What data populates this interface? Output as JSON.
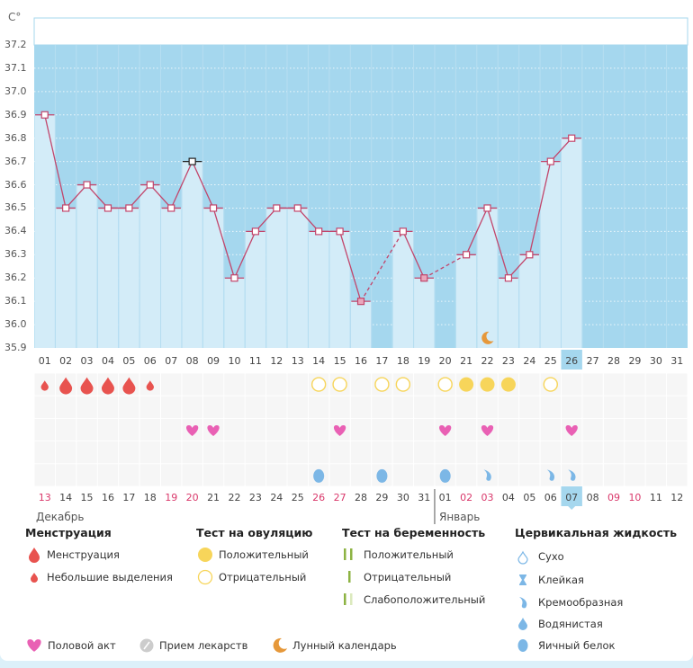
{
  "chart_data": {
    "type": "bar",
    "title": "",
    "ylabel": "C°",
    "ylim": [
      35.9,
      37.2
    ],
    "yticks": [
      "37.2",
      "37.1",
      "37.0",
      "36.9",
      "36.8",
      "36.7",
      "36.6",
      "36.5",
      "36.4",
      "36.3",
      "36.2",
      "36.1",
      "36.0",
      "35.9"
    ],
    "cycle_days": [
      "01",
      "02",
      "03",
      "04",
      "05",
      "06",
      "07",
      "08",
      "09",
      "10",
      "11",
      "12",
      "13",
      "14",
      "15",
      "16",
      "17",
      "18",
      "19",
      "20",
      "21",
      "22",
      "23",
      "24",
      "25",
      "26",
      "27",
      "28",
      "29",
      "30",
      "31"
    ],
    "temperatures": [
      36.9,
      36.5,
      36.6,
      36.5,
      36.5,
      36.6,
      36.5,
      36.7,
      36.5,
      36.2,
      36.4,
      36.5,
      36.5,
      36.4,
      36.4,
      36.1,
      null,
      36.4,
      36.2,
      null,
      36.3,
      36.5,
      36.2,
      36.3,
      36.7,
      36.8,
      null,
      null,
      null,
      null,
      null
    ],
    "highlighted_marker_day": "08",
    "solid_markers_days": [
      "16",
      "19"
    ],
    "current_day": "26",
    "calendar_dates": [
      "13",
      "14",
      "15",
      "16",
      "17",
      "18",
      "19",
      "20",
      "21",
      "22",
      "23",
      "24",
      "25",
      "26",
      "27",
      "28",
      "29",
      "30",
      "31",
      "01",
      "02",
      "03",
      "04",
      "05",
      "06",
      "07",
      "08",
      "09",
      "10",
      "11",
      "12"
    ],
    "weekend_dates_idx": [
      0,
      6,
      7,
      13,
      14,
      20,
      21,
      27,
      28
    ],
    "months": [
      "Декабрь",
      "Январь"
    ],
    "menstruation": [
      "small",
      "big",
      "big",
      "big",
      "big",
      "small",
      null,
      null,
      null,
      null,
      null,
      null,
      null,
      null,
      null,
      null,
      null,
      null,
      null,
      null,
      null,
      null,
      null,
      null,
      null,
      null,
      null,
      null,
      null,
      null,
      null
    ],
    "ovulation_test": [
      null,
      null,
      null,
      null,
      null,
      null,
      null,
      null,
      null,
      null,
      null,
      null,
      null,
      "neg",
      "neg",
      null,
      "neg",
      "neg",
      null,
      "neg",
      "pos",
      "pos",
      "pos",
      null,
      "neg",
      null,
      null,
      null,
      null,
      null,
      null
    ],
    "intercourse": [
      null,
      null,
      null,
      null,
      null,
      null,
      null,
      true,
      true,
      null,
      null,
      null,
      null,
      null,
      true,
      null,
      null,
      null,
      null,
      true,
      null,
      true,
      null,
      null,
      null,
      true,
      null,
      null,
      null,
      null,
      null
    ],
    "cervical": [
      null,
      null,
      null,
      null,
      null,
      null,
      null,
      null,
      null,
      null,
      null,
      null,
      null,
      "egg",
      null,
      null,
      "egg",
      null,
      null,
      "egg",
      null,
      "creamy",
      null,
      null,
      "creamy",
      "creamy",
      null,
      null,
      null,
      null,
      null
    ],
    "moon_day": "22"
  },
  "legend": {
    "menstruation": {
      "title": "Менструация",
      "items": [
        "Менструация",
        "Небольшие выделения"
      ]
    },
    "ovulation": {
      "title": "Тест на овуляцию",
      "items": [
        "Положительный",
        "Отрицательный"
      ]
    },
    "pregnancy": {
      "title": "Тест на беременность",
      "items": [
        "Положительный",
        "Отрицательный",
        "Слабоположительный"
      ]
    },
    "cervical": {
      "title": "Цервикальная жидкость",
      "items": [
        "Сухо",
        "Клейкая",
        "Кремообразная",
        "Водянистая",
        "Яичный белок"
      ]
    },
    "other": [
      "Половой акт",
      "Прием лекарств",
      "Лунный календарь"
    ]
  },
  "colors": {
    "bg": "#a5d7ee",
    "bar": "#d3ecf8",
    "line": "#c2456b",
    "blood": "#e8534f",
    "heart": "#e960b4",
    "ovu": "#f7d55a",
    "cerv": "#7cb7e6",
    "moon": "#e6983a",
    "green": "#8db343",
    "weekend": "#d9386b"
  }
}
